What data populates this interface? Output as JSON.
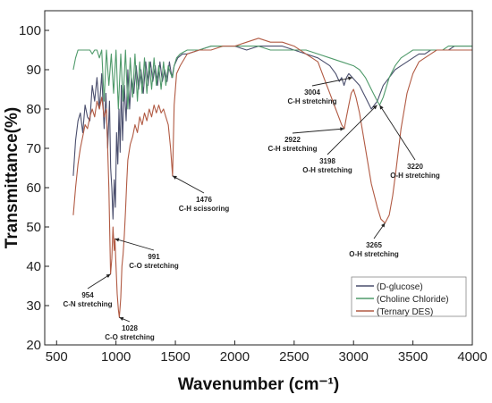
{
  "chart_data": {
    "type": "line",
    "title": "",
    "xlabel": "Wavenumber (cm⁻¹)",
    "ylabel": "Transmittance(%)",
    "xlim": [
      400,
      4000
    ],
    "ylim": [
      20,
      105
    ],
    "x_ticks": [
      "500",
      "1000",
      "1500",
      "2000",
      "2500",
      "3000",
      "3500",
      "4000"
    ],
    "y_ticks": [
      "20",
      "30",
      "40",
      "50",
      "60",
      "70",
      "80",
      "90",
      "100"
    ],
    "legend_position": "bottom-right",
    "series": [
      {
        "name": "(D-glucose)",
        "color": "#4a4e6d",
        "x": [
          640,
          660,
          680,
          700,
          720,
          740,
          760,
          780,
          800,
          820,
          840,
          860,
          880,
          900,
          915,
          930,
          945,
          955,
          965,
          975,
          985,
          995,
          1005,
          1015,
          1025,
          1035,
          1045,
          1055,
          1070,
          1085,
          1100,
          1115,
          1130,
          1150,
          1170,
          1190,
          1210,
          1230,
          1250,
          1270,
          1290,
          1310,
          1330,
          1350,
          1370,
          1390,
          1410,
          1430,
          1450,
          1470,
          1490,
          1520,
          1560,
          1600,
          1700,
          1800,
          1900,
          2000,
          2100,
          2200,
          2300,
          2400,
          2500,
          2600,
          2700,
          2800,
          2850,
          2880,
          2900,
          2920,
          2940,
          2960,
          2990,
          3050,
          3100,
          3150,
          3200,
          3250,
          3300,
          3350,
          3400,
          3450,
          3500,
          3550,
          3600,
          3650,
          3700,
          3750,
          3800,
          3850,
          3900,
          3950,
          4000
        ],
        "values": [
          63,
          72,
          77,
          79,
          74,
          81,
          78,
          77,
          86,
          82,
          88,
          80,
          89,
          75,
          84,
          70,
          82,
          65,
          60,
          52,
          62,
          55,
          74,
          66,
          80,
          69,
          86,
          72,
          86,
          77,
          90,
          80,
          88,
          84,
          91,
          85,
          90,
          84,
          92,
          86,
          92,
          87,
          91,
          86,
          92,
          87,
          90,
          87,
          92,
          88,
          91,
          93,
          94,
          94,
          95,
          96,
          96,
          96,
          95,
          96,
          96,
          96,
          95,
          94,
          93,
          91,
          89,
          87,
          88,
          86,
          88,
          89,
          88,
          86,
          83,
          80,
          82,
          86,
          88,
          90,
          91,
          92,
          93,
          94,
          94,
          95,
          95,
          95,
          95,
          96,
          96,
          96,
          96
        ]
      },
      {
        "name": "(Choline Chloride)",
        "color": "#4f9a6a",
        "x": [
          640,
          660,
          680,
          700,
          720,
          740,
          760,
          780,
          800,
          820,
          840,
          860,
          880,
          900,
          920,
          940,
          960,
          980,
          1000,
          1020,
          1040,
          1060,
          1080,
          1100,
          1120,
          1140,
          1160,
          1180,
          1200,
          1220,
          1240,
          1260,
          1280,
          1300,
          1320,
          1340,
          1360,
          1380,
          1400,
          1420,
          1440,
          1460,
          1476,
          1490,
          1510,
          1540,
          1600,
          1700,
          1800,
          1900,
          2000,
          2100,
          2200,
          2300,
          2400,
          2500,
          2600,
          2700,
          2800,
          2900,
          3000,
          3050,
          3100,
          3150,
          3200,
          3220,
          3250,
          3300,
          3350,
          3400,
          3450,
          3500,
          3550,
          3600,
          3650,
          3700,
          3750,
          3800,
          3850,
          3900,
          3950,
          4000
        ],
        "values": [
          90,
          93,
          95,
          95,
          95,
          95,
          95,
          95,
          94,
          95,
          95,
          93,
          95,
          82,
          95,
          86,
          94,
          84,
          95,
          80,
          94,
          82,
          95,
          80,
          93,
          83,
          94,
          82,
          92,
          84,
          93,
          84,
          92,
          85,
          93,
          86,
          91,
          85,
          92,
          86,
          91,
          89,
          88,
          91,
          93,
          94,
          95,
          95,
          96,
          96,
          96,
          96,
          96,
          95,
          95,
          95,
          95,
          94,
          93,
          92,
          91,
          90,
          88,
          85,
          82,
          81,
          83,
          88,
          91,
          93,
          94,
          95,
          95,
          95,
          95,
          95,
          95,
          96,
          96,
          96,
          96,
          96
        ]
      },
      {
        "name": "(Ternary DES)",
        "color": "#b15a43",
        "x": [
          640,
          660,
          680,
          700,
          720,
          740,
          760,
          780,
          800,
          820,
          840,
          860,
          880,
          900,
          920,
          940,
          954,
          965,
          975,
          985,
          991,
          1000,
          1010,
          1020,
          1028,
          1040,
          1050,
          1060,
          1070,
          1080,
          1090,
          1100,
          1120,
          1140,
          1160,
          1180,
          1200,
          1220,
          1240,
          1260,
          1280,
          1300,
          1320,
          1340,
          1360,
          1380,
          1400,
          1420,
          1440,
          1460,
          1476,
          1490,
          1510,
          1540,
          1600,
          1700,
          1800,
          1900,
          2000,
          2100,
          2200,
          2300,
          2400,
          2500,
          2600,
          2700,
          2750,
          2800,
          2850,
          2900,
          2922,
          2940,
          2960,
          2980,
          3000,
          3020,
          3050,
          3100,
          3150,
          3200,
          3230,
          3265,
          3300,
          3330,
          3360,
          3400,
          3450,
          3500,
          3550,
          3600,
          3650,
          3700,
          3750,
          3800,
          3850,
          3900,
          3950,
          4000
        ],
        "values": [
          53,
          60,
          66,
          70,
          73,
          76,
          75,
          78,
          80,
          78,
          82,
          80,
          83,
          78,
          80,
          60,
          38,
          42,
          50,
          44,
          47,
          40,
          33,
          29,
          27,
          32,
          40,
          43,
          48,
          54,
          61,
          67,
          71,
          73,
          76,
          74,
          78,
          76,
          79,
          77,
          80,
          78,
          81,
          79,
          81,
          79,
          80,
          78,
          76,
          70,
          63,
          81,
          89,
          91,
          94,
          95,
          95,
          96,
          96,
          97,
          98,
          97,
          97,
          96,
          94,
          92,
          88,
          84,
          80,
          76,
          75,
          78,
          81,
          84,
          85,
          83,
          79,
          70,
          61,
          55,
          52,
          51,
          53,
          58,
          65,
          75,
          84,
          89,
          92,
          93,
          94,
          95,
          95,
          95,
          95,
          95,
          95,
          95
        ]
      }
    ],
    "annotations": [
      {
        "line1": "954",
        "line2": "C-N stretching",
        "x": 954,
        "y": 38
      },
      {
        "line1": "991",
        "line2": "C-O stretching",
        "x": 991,
        "y": 47
      },
      {
        "line1": "1028",
        "line2": "C-O stretching",
        "x": 1028,
        "y": 27
      },
      {
        "line1": "1476",
        "line2": "C-H scissoring",
        "x": 1476,
        "y": 63
      },
      {
        "line1": "3004",
        "line2": "C-H stretching",
        "x": 2990,
        "y": 88
      },
      {
        "line1": "2922",
        "line2": "C-H stretching",
        "x": 2922,
        "y": 75
      },
      {
        "line1": "3198",
        "line2": "O-H stretching",
        "x": 3198,
        "y": 81
      },
      {
        "line1": "3220",
        "line2": "O-H stretching",
        "x": 3220,
        "y": 81
      },
      {
        "line1": "3265",
        "line2": "O-H stretching",
        "x": 3265,
        "y": 51
      }
    ]
  }
}
